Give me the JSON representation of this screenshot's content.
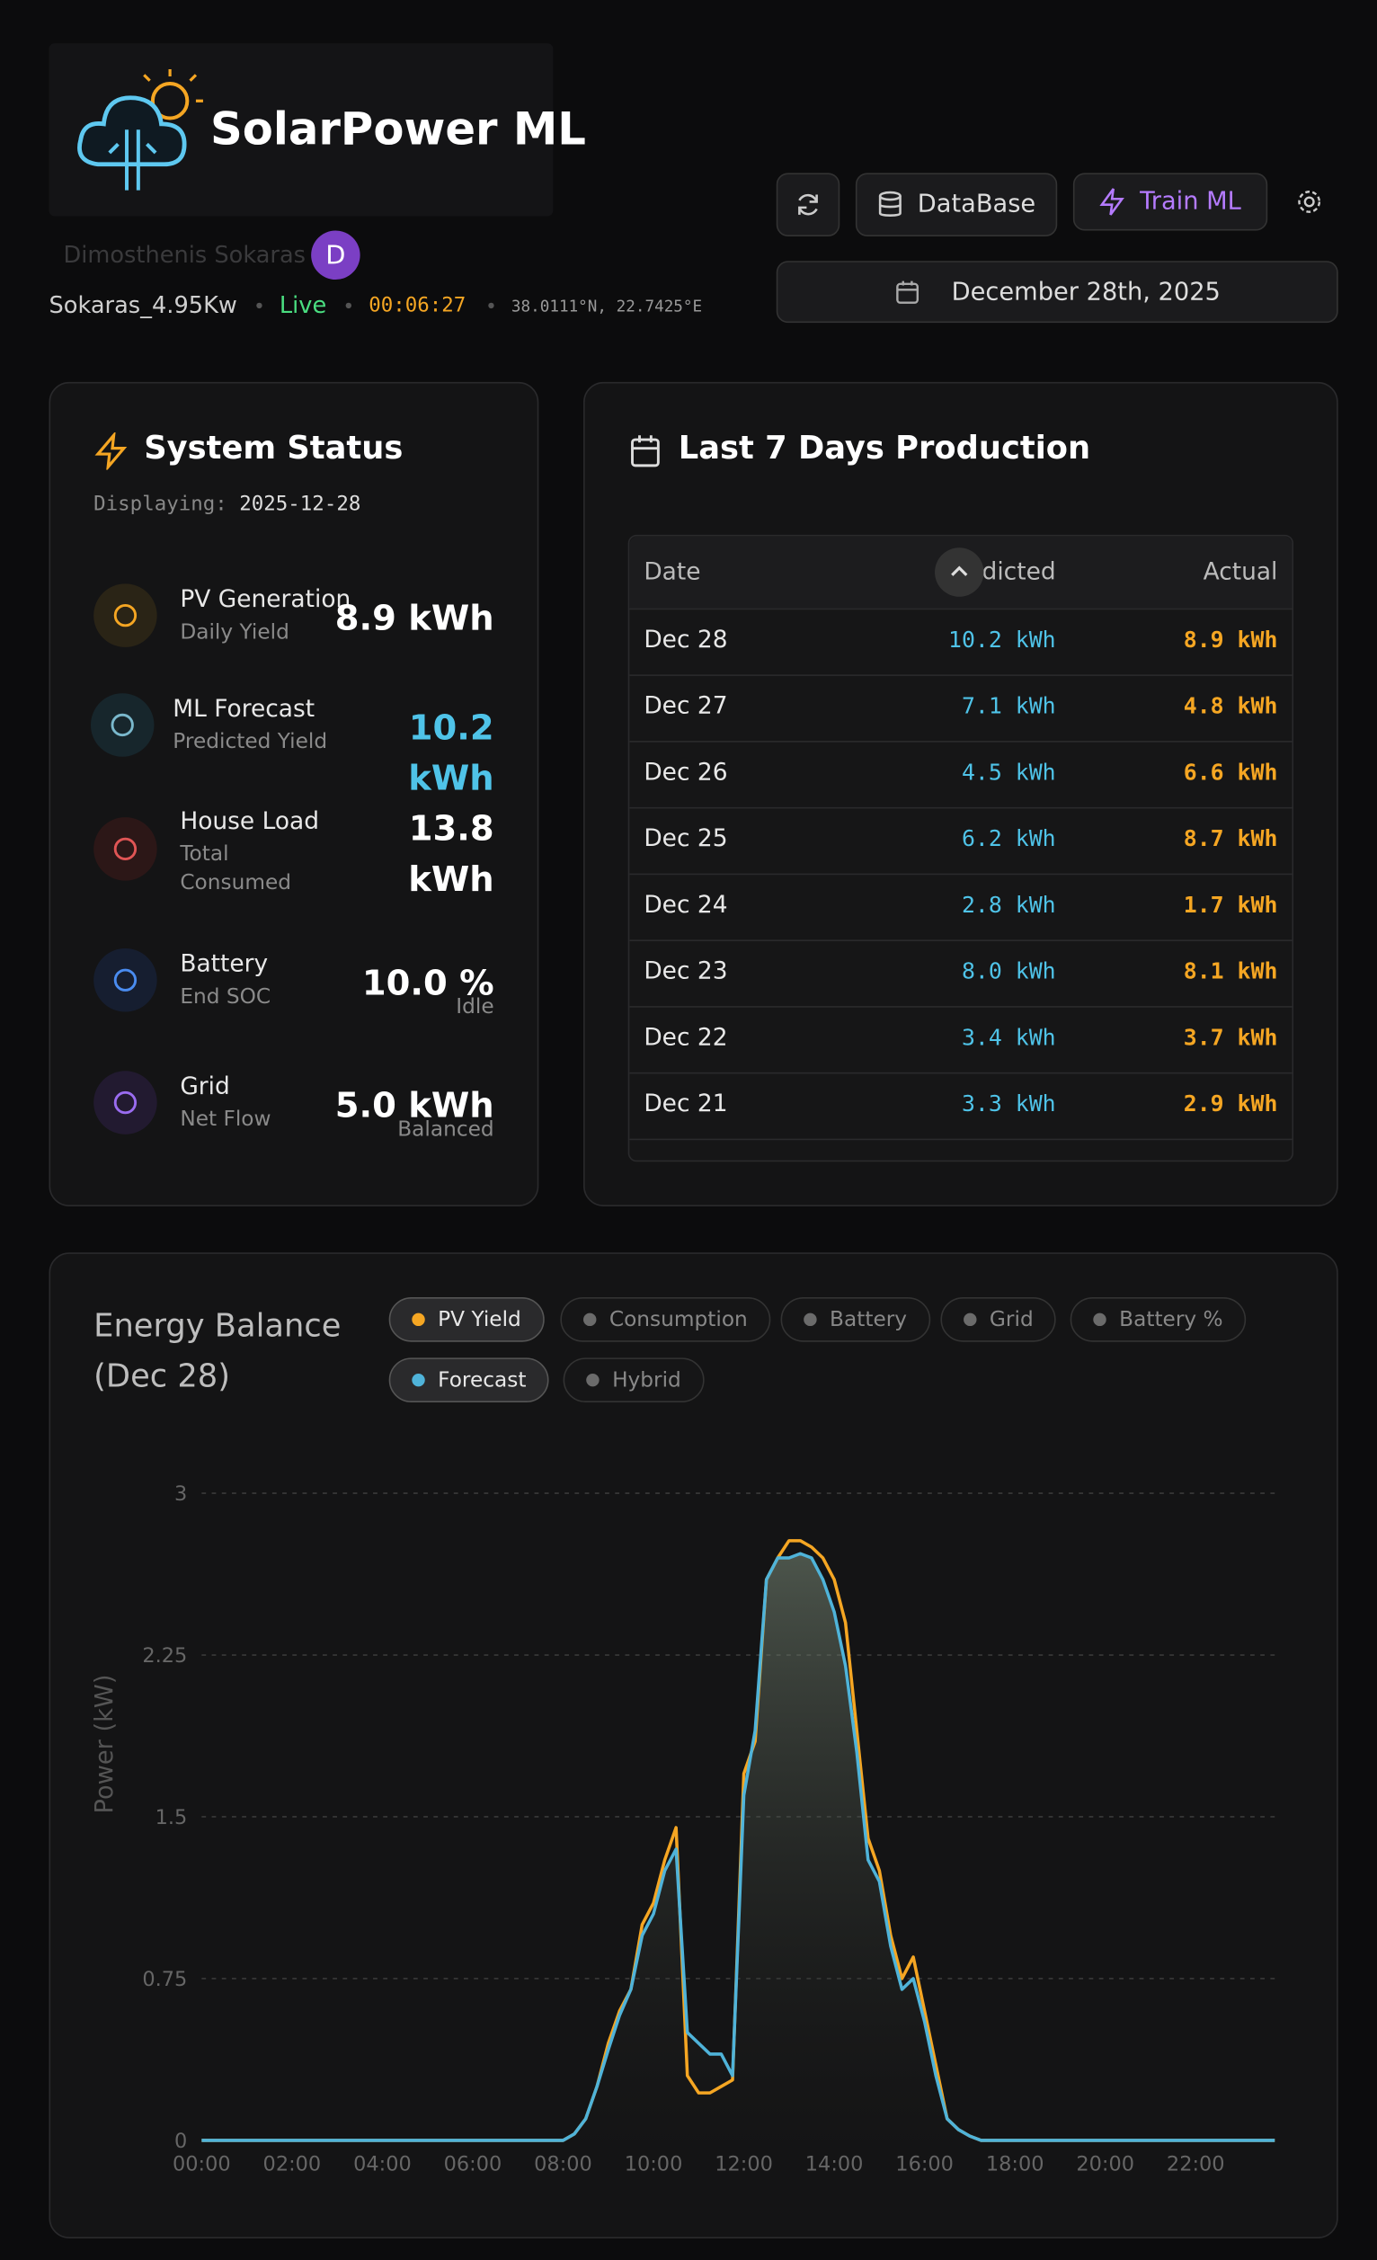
{
  "header": {
    "app_name": "SolarPower ML",
    "user_name": "Dimosthenis Sokaras",
    "avatar": "D",
    "system": "Sokaras_4.95Kw",
    "status": "Live",
    "clock": "00:06:27",
    "coords": "38.0111°N, 22.7425°E"
  },
  "toolbar": {
    "database": "DataBase",
    "train": "Train ML",
    "date": "December 28th, 2025"
  },
  "status_card": {
    "title": "System Status",
    "displaying_label": "Displaying:",
    "displaying_date": "2025-12-28",
    "items": [
      {
        "label": "PV Generation",
        "sub": "Daily Yield",
        "value": "8.9 kWh"
      },
      {
        "label": "ML Forecast",
        "sub": "Predicted Yield",
        "value": "10.2 kWh"
      },
      {
        "label": "House Load",
        "sub": "Total Consumed",
        "value": "13.8 kWh"
      },
      {
        "label": "Battery",
        "sub": "End SOC",
        "value": "10.0 %",
        "note": "Idle"
      },
      {
        "label": "Grid",
        "sub": "Net Flow",
        "value": "5.0 kWh",
        "note": "Balanced"
      }
    ]
  },
  "production_card": {
    "title": "Last 7 Days Production",
    "table": {
      "headers": [
        "Date",
        "Predicted",
        "Actual"
      ],
      "rows": [
        [
          "Dec 28",
          "10.2 kWh",
          "8.9 kWh"
        ],
        [
          "Dec 27",
          "7.1 kWh",
          "4.8 kWh"
        ],
        [
          "Dec 26",
          "4.5 kWh",
          "6.6 kWh"
        ],
        [
          "Dec 25",
          "6.2 kWh",
          "8.7 kWh"
        ],
        [
          "Dec 24",
          "2.8 kWh",
          "1.7 kWh"
        ],
        [
          "Dec 23",
          "8.0 kWh",
          "8.1 kWh"
        ],
        [
          "Dec 22",
          "3.4 kWh",
          "3.7 kWh"
        ],
        [
          "Dec 21",
          "3.3 kWh",
          "2.9 kWh"
        ]
      ]
    }
  },
  "chart_data": {
    "type": "line",
    "title": "Energy Balance (Dec 28)",
    "y_label": "Power (kW)",
    "toggles": [
      {
        "name": "PV Yield",
        "color": "#f5a623",
        "active": true
      },
      {
        "name": "Consumption",
        "color": "#6b6b6b",
        "active": false
      },
      {
        "name": "Battery",
        "color": "#6b6b6b",
        "active": false
      },
      {
        "name": "Grid",
        "color": "#6b6b6b",
        "active": false
      },
      {
        "name": "Battery %",
        "color": "#6b6b6b",
        "active": false
      },
      {
        "name": "Forecast",
        "color": "#4fb3d9",
        "active": true
      },
      {
        "name": "Hybrid",
        "color": "#6b6b6b",
        "active": false
      }
    ],
    "x": [
      "00:00",
      "08:00",
      "08:15",
      "08:30",
      "08:45",
      "09:00",
      "09:15",
      "09:30",
      "09:45",
      "10:00",
      "10:15",
      "10:30",
      "10:45",
      "11:00",
      "11:15",
      "11:30",
      "11:45",
      "12:00",
      "12:15",
      "12:30",
      "12:45",
      "13:00",
      "13:15",
      "13:30",
      "13:45",
      "14:00",
      "14:15",
      "14:30",
      "14:45",
      "15:00",
      "15:15",
      "15:30",
      "15:45",
      "16:00",
      "16:15",
      "16:30",
      "16:45",
      "17:00",
      "17:15",
      "23:45"
    ],
    "series": [
      {
        "name": "PV Yield",
        "color": "#f5a623",
        "values": [
          0,
          0,
          0.03,
          0.1,
          0.25,
          0.45,
          0.6,
          0.7,
          1.0,
          1.1,
          1.3,
          1.45,
          0.3,
          0.22,
          0.22,
          0.25,
          0.28,
          1.7,
          1.85,
          2.6,
          2.7,
          2.78,
          2.78,
          2.75,
          2.7,
          2.6,
          2.4,
          1.9,
          1.4,
          1.25,
          0.95,
          0.75,
          0.85,
          0.6,
          0.35,
          0.1,
          0.05,
          0.02,
          0,
          0
        ]
      },
      {
        "name": "Forecast",
        "color": "#4fb3d9",
        "values": [
          0,
          0,
          0.03,
          0.1,
          0.25,
          0.42,
          0.58,
          0.7,
          0.95,
          1.05,
          1.25,
          1.35,
          0.5,
          0.45,
          0.4,
          0.4,
          0.3,
          1.6,
          1.9,
          2.6,
          2.7,
          2.7,
          2.72,
          2.7,
          2.6,
          2.45,
          2.2,
          1.8,
          1.3,
          1.2,
          0.9,
          0.7,
          0.75,
          0.55,
          0.3,
          0.1,
          0.05,
          0.02,
          0,
          0
        ]
      }
    ],
    "xlim": [
      "00:00",
      "23:45"
    ],
    "xticks": [
      "00:00",
      "02:00",
      "04:00",
      "06:00",
      "08:00",
      "10:00",
      "12:00",
      "14:00",
      "16:00",
      "18:00",
      "20:00",
      "22:00"
    ],
    "ylim": [
      0,
      3
    ],
    "yticks": [
      0,
      0.75,
      1.5,
      2.25,
      3
    ],
    "grid": true
  }
}
